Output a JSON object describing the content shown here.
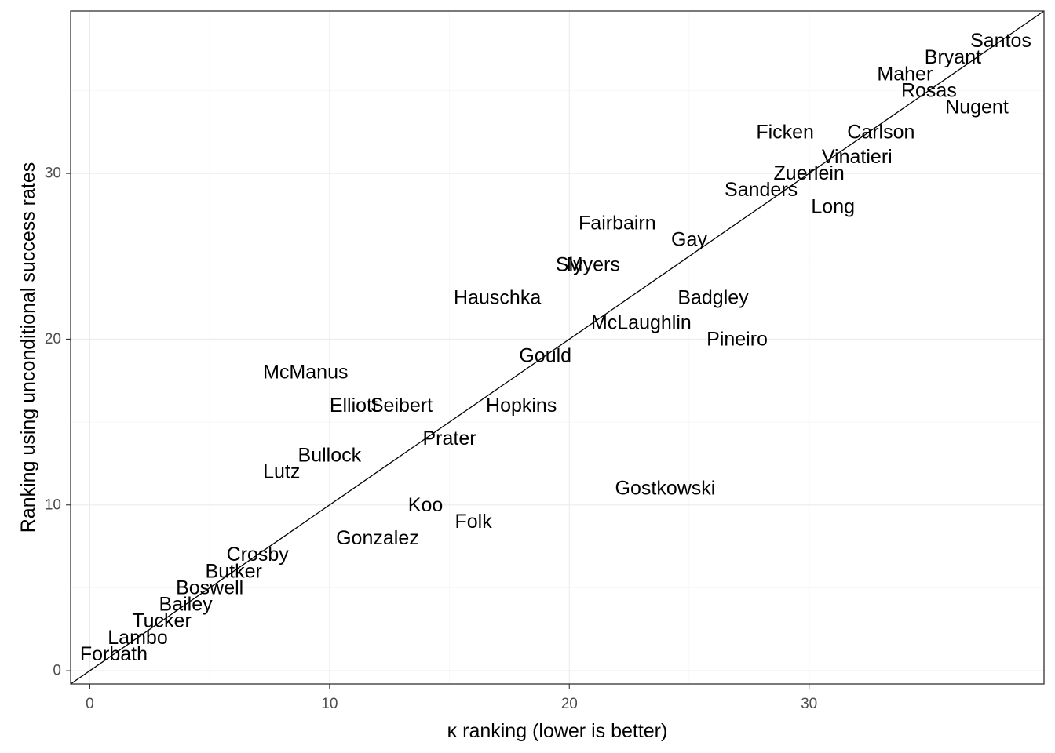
{
  "chart_data": {
    "type": "scatter",
    "title": "",
    "xlabel": "κ ranking (lower is better)",
    "ylabel": "Ranking using unconditional success rates",
    "xlim": [
      -0.8,
      39.8
    ],
    "ylim": [
      -0.8,
      39.8
    ],
    "x_ticks": [
      0,
      10,
      20,
      30
    ],
    "y_ticks": [
      0,
      10,
      20,
      30
    ],
    "grid": true,
    "reference_line": "y = x",
    "points": [
      {
        "label": "Santos",
        "x": 38,
        "y": 38
      },
      {
        "label": "Bryant",
        "x": 36,
        "y": 37
      },
      {
        "label": "Maher",
        "x": 34,
        "y": 36
      },
      {
        "label": "Rosas",
        "x": 35,
        "y": 35
      },
      {
        "label": "Nugent",
        "x": 37,
        "y": 34
      },
      {
        "label": "Ficken",
        "x": 29,
        "y": 32.5
      },
      {
        "label": "Carlson",
        "x": 33,
        "y": 32.5
      },
      {
        "label": "Vinatieri",
        "x": 32,
        "y": 31
      },
      {
        "label": "Zuerlein",
        "x": 30,
        "y": 30
      },
      {
        "label": "Sanders",
        "x": 28,
        "y": 29
      },
      {
        "label": "Long",
        "x": 31,
        "y": 28
      },
      {
        "label": "Fairbairn",
        "x": 22,
        "y": 27
      },
      {
        "label": "Gay",
        "x": 25,
        "y": 26
      },
      {
        "label": "Sly",
        "x": 20,
        "y": 24.5
      },
      {
        "label": "Myers",
        "x": 21,
        "y": 24.5
      },
      {
        "label": "Hauschka",
        "x": 17,
        "y": 22.5
      },
      {
        "label": "Badgley",
        "x": 26,
        "y": 22.5
      },
      {
        "label": "McLaughlin",
        "x": 23,
        "y": 21
      },
      {
        "label": "Pineiro",
        "x": 27,
        "y": 20
      },
      {
        "label": "Gould",
        "x": 19,
        "y": 19
      },
      {
        "label": "McManus",
        "x": 9,
        "y": 18
      },
      {
        "label": "Elliott",
        "x": 11,
        "y": 16
      },
      {
        "label": "Seibert",
        "x": 13,
        "y": 16
      },
      {
        "label": "Hopkins",
        "x": 18,
        "y": 16
      },
      {
        "label": "Prater",
        "x": 15,
        "y": 14
      },
      {
        "label": "Bullock",
        "x": 10,
        "y": 13
      },
      {
        "label": "Lutz",
        "x": 8,
        "y": 12
      },
      {
        "label": "Gostkowski",
        "x": 24,
        "y": 11
      },
      {
        "label": "Koo",
        "x": 14,
        "y": 10
      },
      {
        "label": "Folk",
        "x": 16,
        "y": 9
      },
      {
        "label": "Gonzalez",
        "x": 12,
        "y": 8
      },
      {
        "label": "Crosby",
        "x": 7,
        "y": 7
      },
      {
        "label": "Butker",
        "x": 6,
        "y": 6
      },
      {
        "label": "Boswell",
        "x": 5,
        "y": 5
      },
      {
        "label": "Bailey",
        "x": 4,
        "y": 4
      },
      {
        "label": "Tucker",
        "x": 3,
        "y": 3
      },
      {
        "label": "Lambo",
        "x": 2,
        "y": 2
      },
      {
        "label": "Forbath",
        "x": 1,
        "y": 1
      }
    ]
  }
}
